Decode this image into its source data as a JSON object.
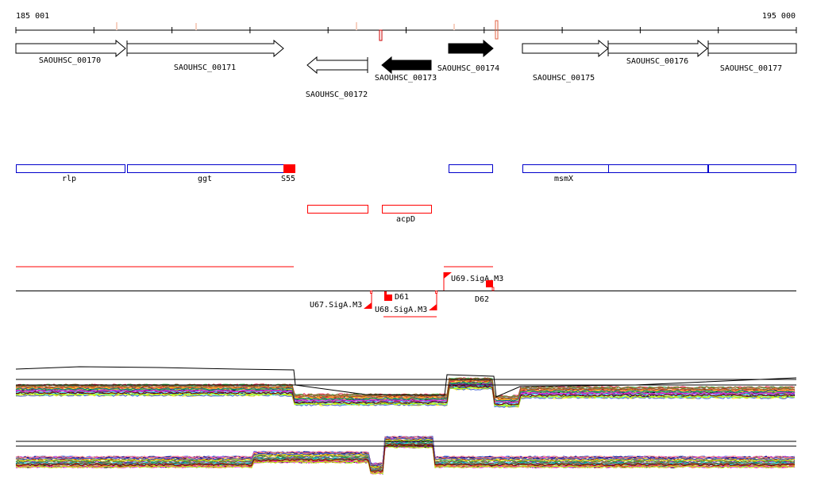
{
  "ruler": {
    "start": "185 001",
    "end": "195 000"
  },
  "genes": [
    {
      "label": "SAOUHSC_00170",
      "strand": "+",
      "filled": false
    },
    {
      "label": "SAOUHSC_00171",
      "strand": "+",
      "filled": false
    },
    {
      "label": "SAOUHSC_00172",
      "strand": "-",
      "filled": false
    },
    {
      "label": "SAOUHSC_00173",
      "strand": "-",
      "filled": true
    },
    {
      "label": "SAOUHSC_00174",
      "strand": "+",
      "filled": true
    },
    {
      "label": "SAOUHSC_00175",
      "strand": "+",
      "filled": false
    },
    {
      "label": "SAOUHSC_00176",
      "strand": "+",
      "filled": false
    },
    {
      "label": "SAOUHSC_00177",
      "strand": "+",
      "filled": false
    }
  ],
  "features": {
    "rlp": "rlp",
    "ggt": "ggt",
    "s55": "S55",
    "msmx": "msmX",
    "acpd": "acpD"
  },
  "sites": {
    "u67": "U67.SigA.M3",
    "u68": "U68.SigA.M3",
    "u69": "U69.SigA.M3",
    "d61": "D61",
    "d62": "D62"
  },
  "colors": {
    "feature_blue": "#0000cc",
    "feature_red": "#ff0000"
  }
}
